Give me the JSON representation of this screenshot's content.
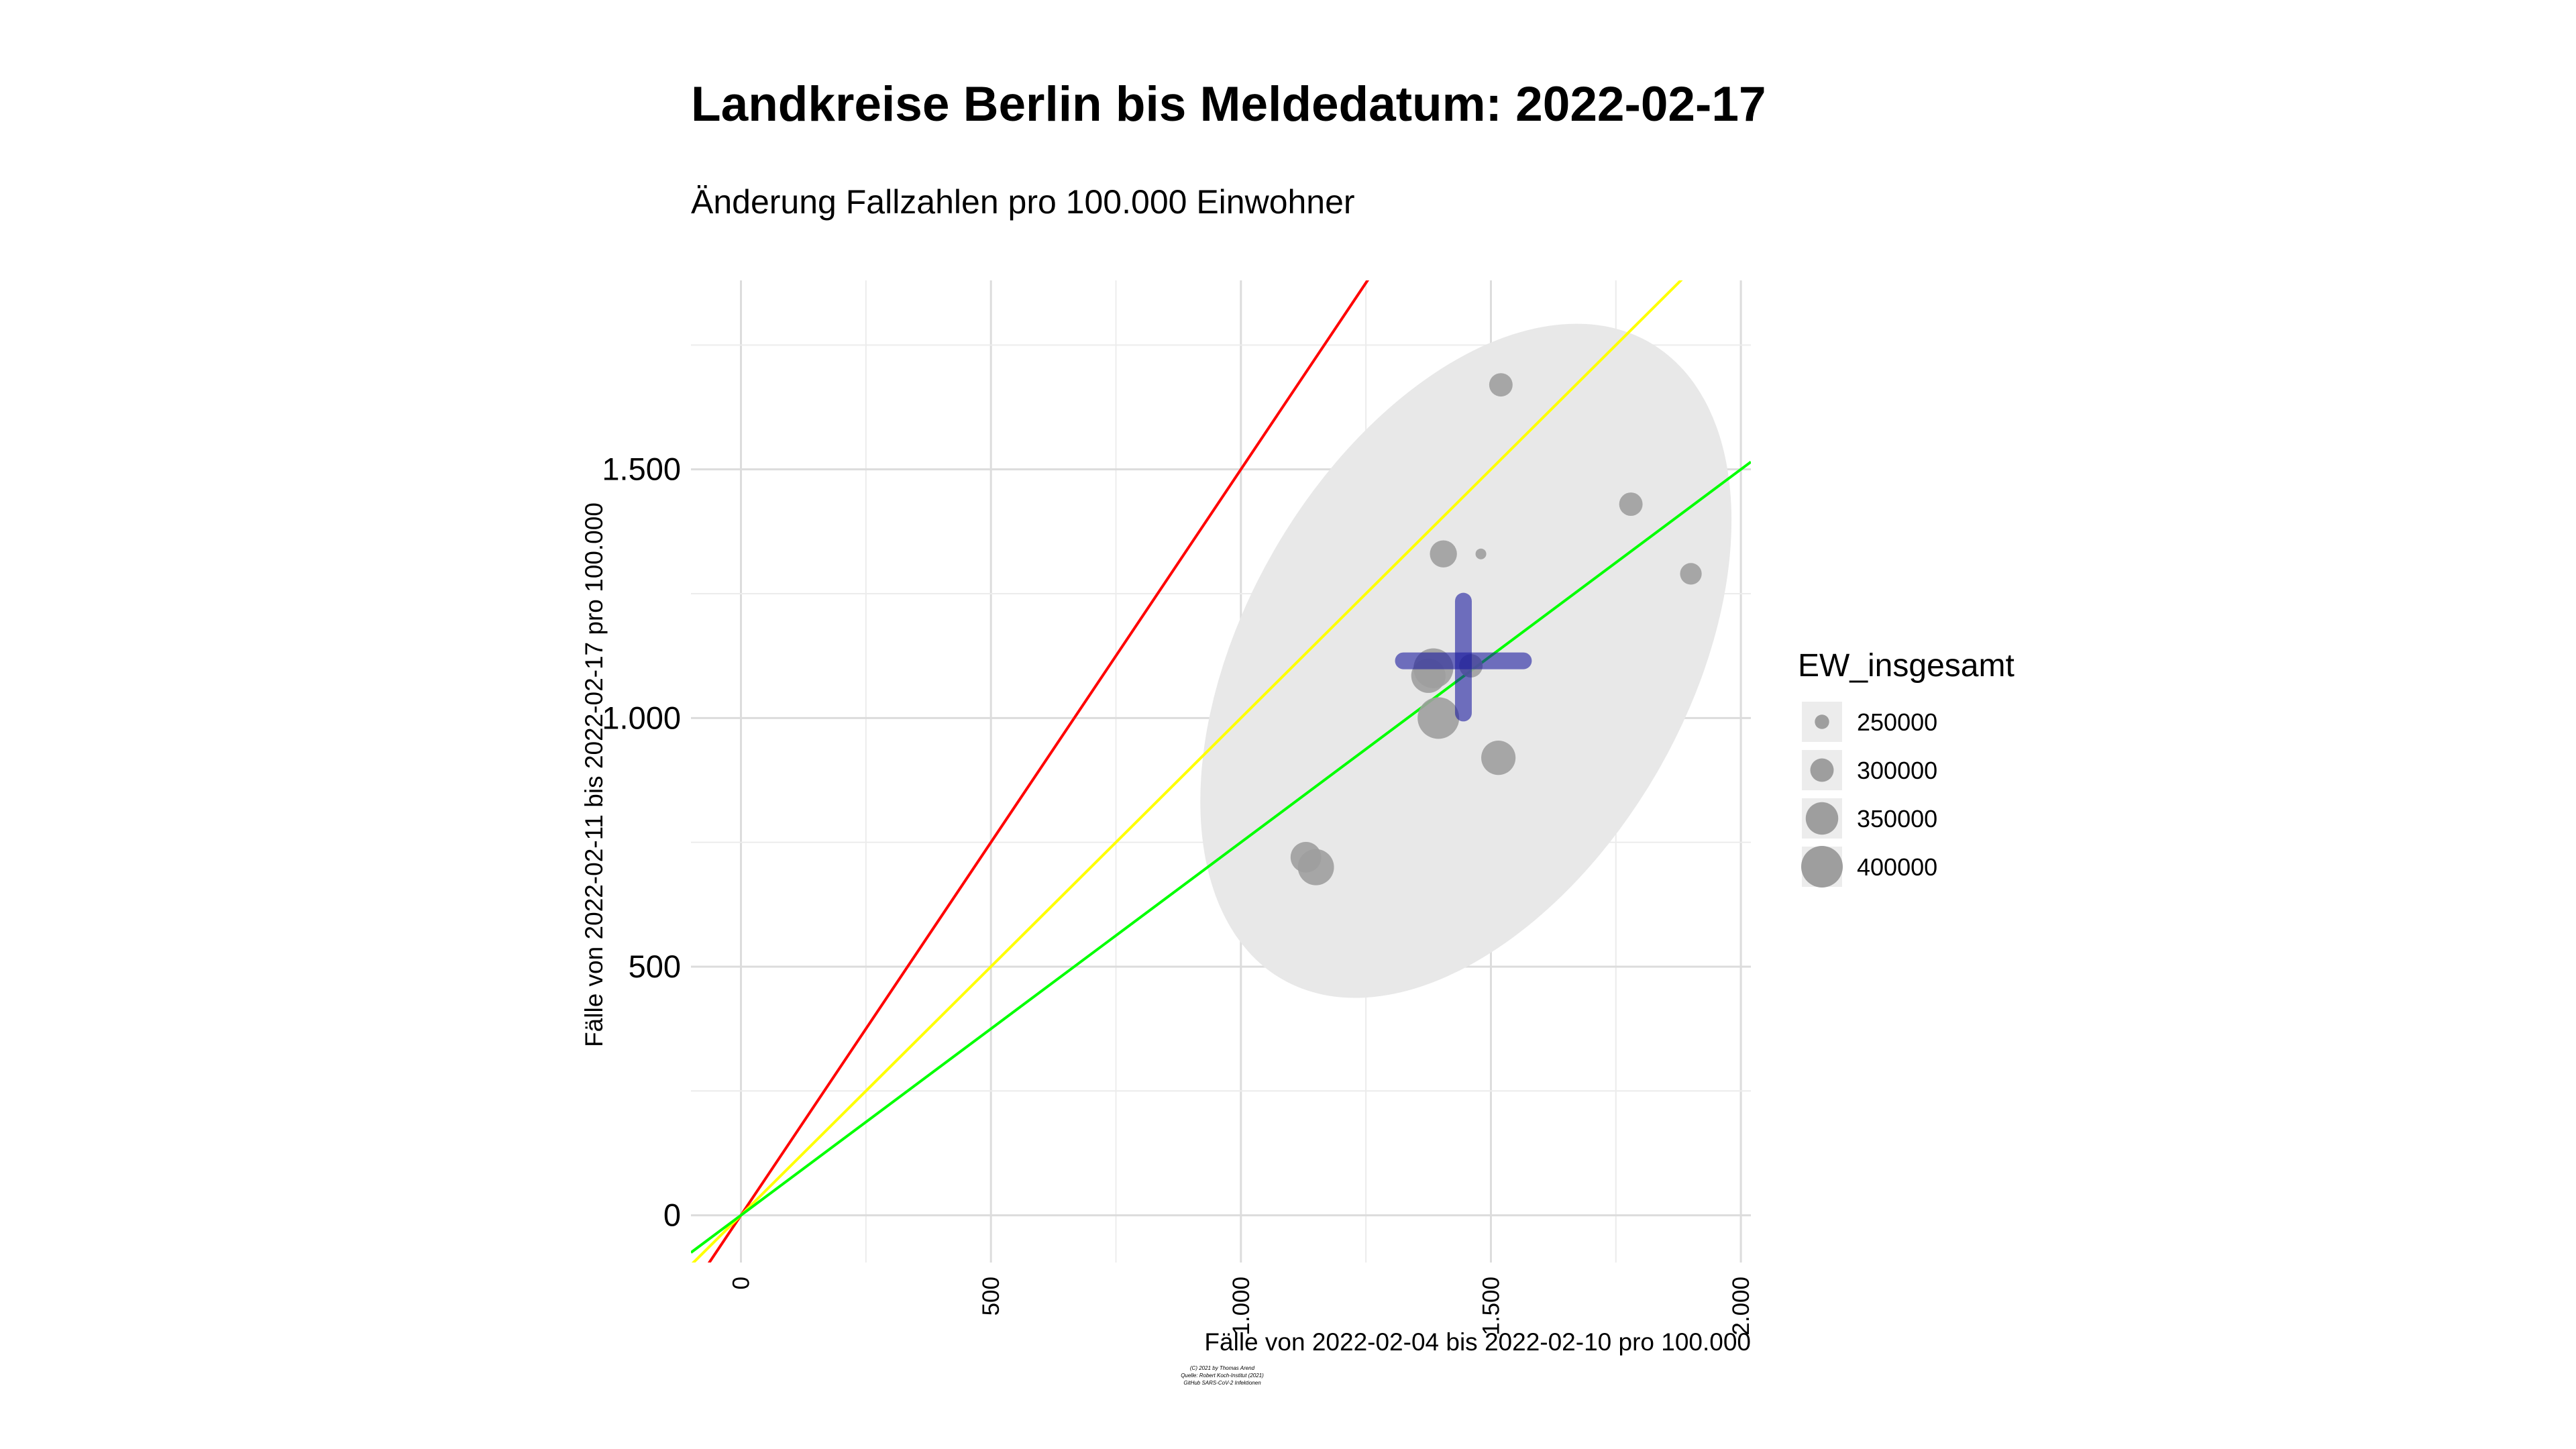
{
  "chart_data": {
    "type": "scatter",
    "title": "Landkreise Berlin bis Meldedatum: 2022-02-17",
    "subtitle": "Änderung Fallzahlen pro 100.000 Einwohner",
    "xlabel": "Fälle von 2022-02-04 bis 2022-02-10 pro 100.000",
    "ylabel": "Fälle von 2022-02-11 bis 2022-02-17 pro 100.000",
    "xlim": [
      -100,
      2020
    ],
    "ylim": [
      -95,
      1880
    ],
    "x_ticks": [
      {
        "value": 0,
        "label": "0"
      },
      {
        "value": 500,
        "label": "500"
      },
      {
        "value": 1000,
        "label": "1.000"
      },
      {
        "value": 1500,
        "label": "1.500"
      },
      {
        "value": 2000,
        "label": "2.000"
      }
    ],
    "y_ticks": [
      {
        "value": 0,
        "label": "0"
      },
      {
        "value": 500,
        "label": "500"
      },
      {
        "value": 1000,
        "label": "1.000"
      },
      {
        "value": 1500,
        "label": "1.500"
      }
    ],
    "grid": true,
    "reference_lines": [
      {
        "slope": 1.5,
        "color": "#ff0000"
      },
      {
        "slope": 1.0,
        "color": "#ffff00"
      },
      {
        "slope": 0.75,
        "color": "#00ff00"
      }
    ],
    "ellipse": {
      "center_x": 1450,
      "center_y": 1115,
      "color": "#e8e8e8"
    },
    "mean_cross": {
      "x": 1445,
      "y": 1115,
      "x_range": [
        1325,
        1565
      ],
      "y_range": [
        1010,
        1235
      ],
      "color": "#1a1a9e"
    },
    "points": [
      {
        "x": 1520,
        "y": 1670,
        "size": 300000
      },
      {
        "x": 1780,
        "y": 1430,
        "size": 300000
      },
      {
        "x": 1405,
        "y": 1330,
        "size": 320000
      },
      {
        "x": 1480,
        "y": 1330,
        "size": 230000
      },
      {
        "x": 1900,
        "y": 1290,
        "size": 290000
      },
      {
        "x": 1460,
        "y": 1105,
        "size": 300000
      },
      {
        "x": 1385,
        "y": 1100,
        "size": 390000
      },
      {
        "x": 1375,
        "y": 1085,
        "size": 360000
      },
      {
        "x": 1395,
        "y": 1000,
        "size": 400000
      },
      {
        "x": 1515,
        "y": 920,
        "size": 360000
      },
      {
        "x": 1130,
        "y": 720,
        "size": 340000
      },
      {
        "x": 1150,
        "y": 700,
        "size": 370000
      }
    ],
    "point_color": "#9e9e9e",
    "legend": {
      "title": "EW_insgesamt",
      "position": "right",
      "entries": [
        {
          "label": "250000",
          "value": 250000
        },
        {
          "label": "300000",
          "value": 300000
        },
        {
          "label": "350000",
          "value": 350000
        },
        {
          "label": "400000",
          "value": 400000
        }
      ]
    },
    "caption": [
      "(C) 2021 by Thomas Arend",
      "Quelle: Robert Koch-Institut (2021)",
      "GitHub SARS-CoV-2 Infektionen"
    ]
  }
}
